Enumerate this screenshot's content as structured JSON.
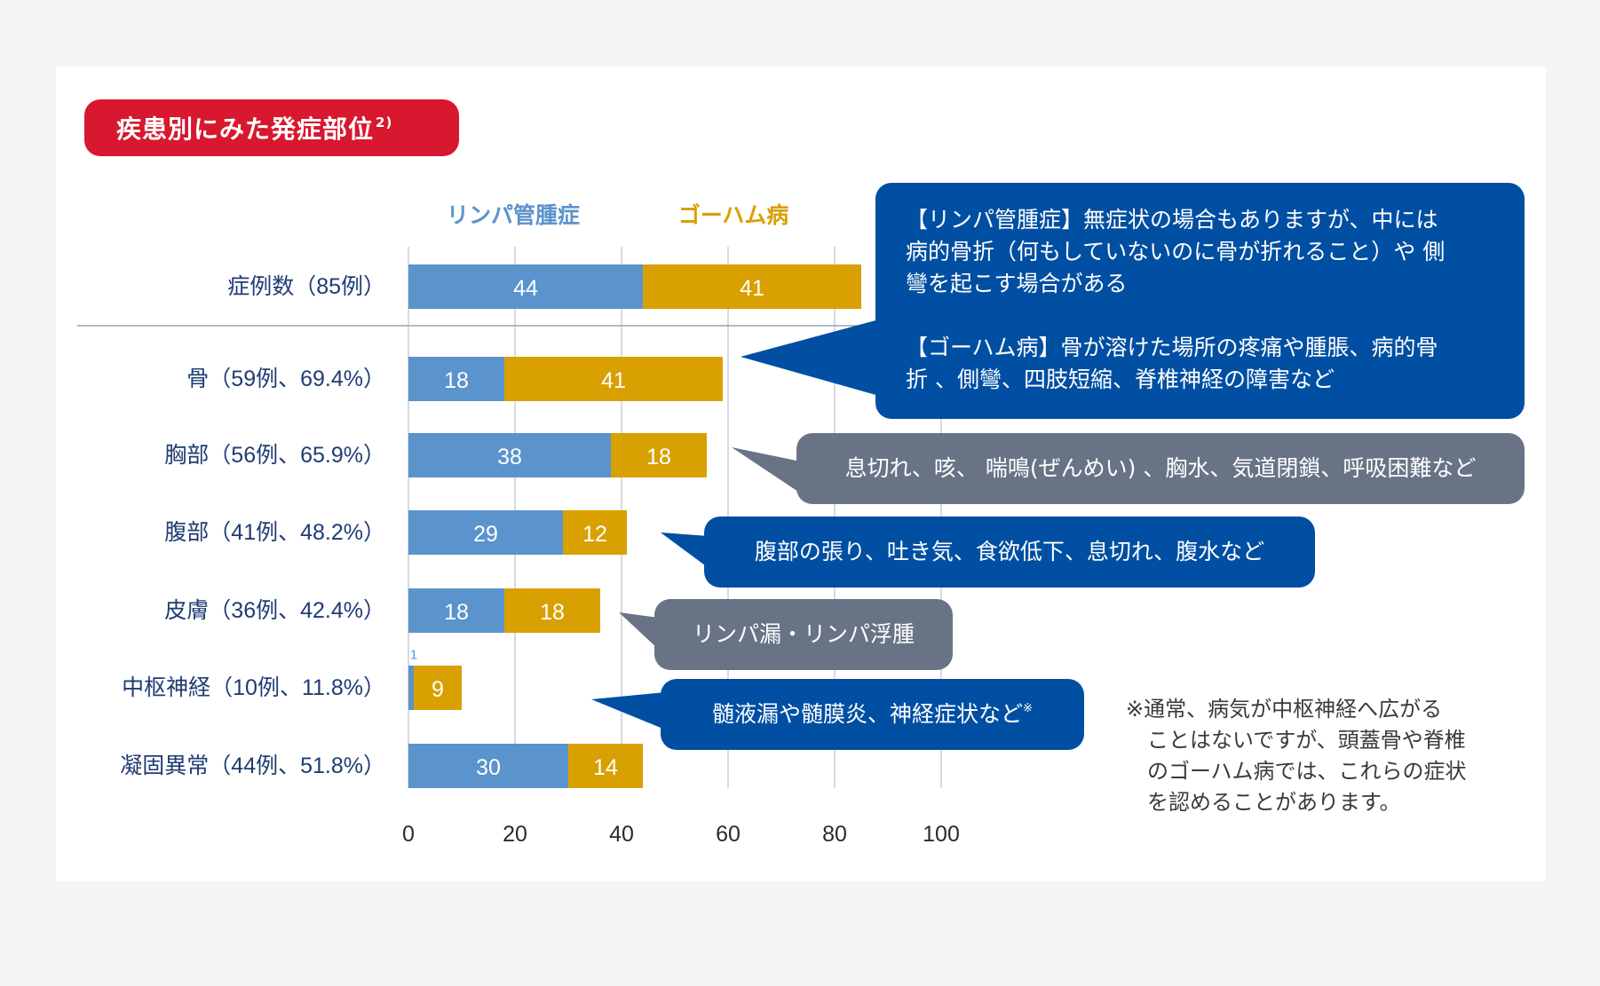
{
  "title": {
    "text": "疾患別にみた発症部位",
    "ref": "2)"
  },
  "colors": {
    "lymph": "#5b93cc",
    "gorham": "#d8a000",
    "category_text": "#1f3c73",
    "callout_blue": "#004fa2",
    "callout_gray": "#687486",
    "title_red": "#d7182f"
  },
  "chart_data": {
    "type": "bar",
    "orientation": "horizontal",
    "stacked": true,
    "categories": [
      "症例数（85例）",
      "骨（59例、69.4%）",
      "胸部（56例、65.9%）",
      "腹部（41例、48.2%）",
      "皮膚（36例、42.4%）",
      "中枢神経（10例、11.8%）",
      "凝固異常（44例、51.8%）"
    ],
    "series": [
      {
        "name": "リンパ管腫症",
        "values": [
          44,
          18,
          38,
          29,
          18,
          1,
          30
        ]
      },
      {
        "name": "ゴーハム病",
        "values": [
          41,
          41,
          18,
          12,
          18,
          9,
          14
        ]
      }
    ],
    "x_ticks": [
      0,
      20,
      40,
      60,
      80,
      100
    ],
    "xlim": [
      0,
      100
    ],
    "grid": true,
    "legend_position": "top"
  },
  "callouts": {
    "lymph_gorham": {
      "line1": "【リンパ管腫症】無症状の場合もありますが、中には",
      "line2": "病的骨折（何もしていないのに骨が折れること）や 側",
      "line3": "彎を起こす場合がある",
      "line4": "【ゴーハム病】骨が溶けた場所の疼痛や腫脹、病的骨",
      "line5": "折 、側彎、四肢短縮、脊椎神経の障害など"
    },
    "chest": "息切れ、咳、 喘鳴(ぜんめい) 、胸水、気道閉鎖、呼吸困難など",
    "abdomen": "腹部の張り、吐き気、食欲低下、息切れ、腹水など",
    "skin": "リンパ漏・リンパ浮腫",
    "cns": "髄液漏や髄膜炎、神経症状など",
    "cns_mark": "※"
  },
  "footnote": {
    "line1": "※通常、病気が中枢神経へ広がる",
    "line2": "ことはないですが、頭蓋骨や脊椎",
    "line3": "のゴーハム病では、これらの症状",
    "line4": "を認めることがあります。"
  }
}
